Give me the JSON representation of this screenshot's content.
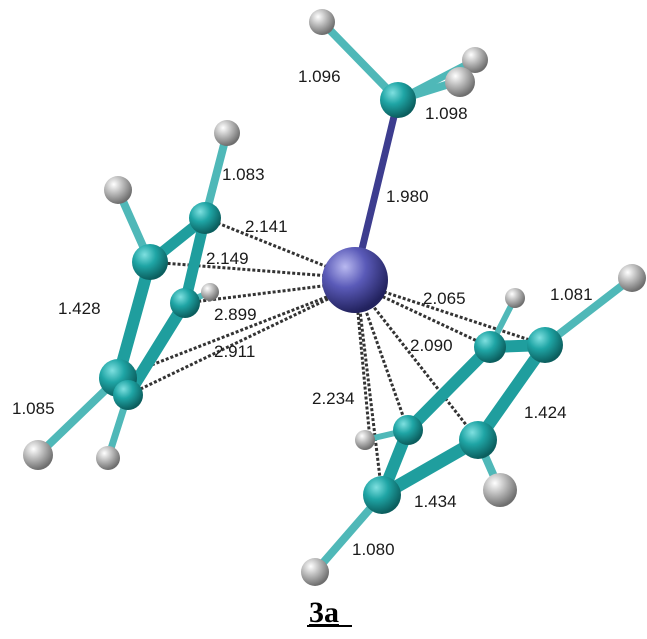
{
  "figure": {
    "caption": "3a",
    "colors": {
      "carbon": "#1fa5a5",
      "hydrogen": "#a8a8a8",
      "metal": "#3b3b9a",
      "bond_cc": "#1f9e9e",
      "bond_ch": "#4fb8b8",
      "metal_bond": "#3d3d8f",
      "dashed": "#333333"
    },
    "labels": {
      "ch_methyl_left": "1.096",
      "ch_methyl_right": "1.098",
      "m_ch3": "1.980",
      "ch_left_top": "1.083",
      "m_c_left_1": "2.141",
      "m_c_left_2": "2.149",
      "m_c_left_3": "2.899",
      "m_c_left_4": "2.911",
      "cc_left": "1.428",
      "ch_left_bottom": "1.085",
      "m_c_right_1": "2.065",
      "ch_right_top": "1.081",
      "m_c_right_2": "2.090",
      "cc_right_1": "1.424",
      "m_c_right_3": "2.234",
      "cc_right_2": "1.434",
      "ch_right_bottom": "1.080"
    }
  }
}
